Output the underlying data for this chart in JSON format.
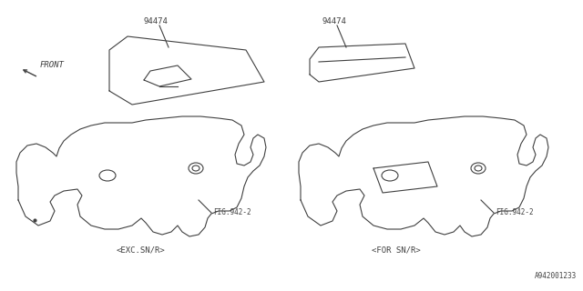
{
  "bg_color": "#ffffff",
  "line_color": "#404040",
  "part_number": "94474",
  "fig_ref": "FIG.942-2",
  "label_left": "<EXC.SN/R>",
  "label_right": "<FOR SN/R>",
  "front_label": "FRONT",
  "diagram_id": "A942001233",
  "line_width": 0.8,
  "font_size": 6.0
}
